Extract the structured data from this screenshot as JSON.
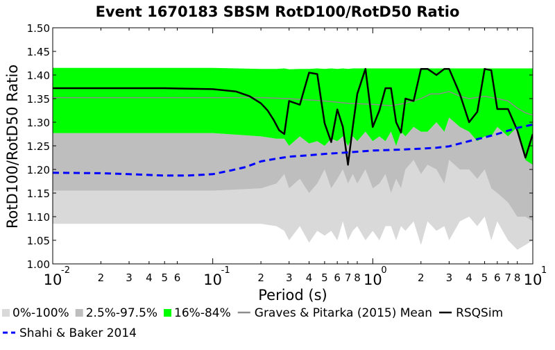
{
  "chart_data": {
    "type": "area",
    "title": "Event 1670183 SBSM RotD100/RotD50 Ratio",
    "xlabel": "Period (s)",
    "ylabel": "RotD100/RotD50 Ratio",
    "xscale": "log",
    "xlim": [
      0.01,
      10
    ],
    "ylim": [
      1.0,
      1.5
    ],
    "grid": false,
    "legend_position": "bottom",
    "y_ticks": [
      "1.00",
      "1.05",
      "1.10",
      "1.15",
      "1.20",
      "1.25",
      "1.30",
      "1.35",
      "1.40",
      "1.45",
      "1.50"
    ],
    "x_major_ticks": [
      {
        "value": 0.01,
        "base": "10",
        "exp": "-2"
      },
      {
        "value": 0.1,
        "base": "10",
        "exp": "-1"
      },
      {
        "value": 1,
        "base": "10",
        "exp": "0"
      },
      {
        "value": 10,
        "base": "10",
        "exp": "1"
      }
    ],
    "x_minor_ticks": [
      {
        "value": 0.02,
        "label": "2"
      },
      {
        "value": 0.03,
        "label": "3"
      },
      {
        "value": 0.04,
        "label": "4"
      },
      {
        "value": 0.05,
        "label": "5"
      },
      {
        "value": 0.06,
        "label": "6"
      },
      {
        "value": 0.2,
        "label": "2"
      },
      {
        "value": 0.3,
        "label": "3"
      },
      {
        "value": 0.4,
        "label": "4"
      },
      {
        "value": 0.5,
        "label": "5"
      },
      {
        "value": 0.6,
        "label": "6"
      },
      {
        "value": 0.7,
        "label": "7"
      },
      {
        "value": 0.8,
        "label": "8"
      },
      {
        "value": 2,
        "label": "2"
      },
      {
        "value": 3,
        "label": "3"
      },
      {
        "value": 4,
        "label": "4"
      },
      {
        "value": 5,
        "label": "5"
      },
      {
        "value": 6,
        "label": "6"
      },
      {
        "value": 7,
        "label": "7"
      },
      {
        "value": 8,
        "label": "8"
      }
    ],
    "legend": [
      {
        "name": "0%-100%",
        "kind": "patch",
        "color": "#d9d9d9"
      },
      {
        "name": "2.5%-97.5%",
        "kind": "patch",
        "color": "#bebebe"
      },
      {
        "name": "16%-84%",
        "kind": "patch",
        "color": "#00ff00"
      },
      {
        "name": "Graves & Pitarka (2015) Mean",
        "kind": "line",
        "color": "#8c8c8c",
        "dash": "solid"
      },
      {
        "name": "RSQSim",
        "kind": "line",
        "color": "#000000",
        "dash": "solid"
      },
      {
        "name": "Shahi & Baker 2014",
        "kind": "line",
        "color": "#0000ff",
        "dash": "dashed"
      }
    ],
    "bands": [
      {
        "name": "0%-100%",
        "color": "#d9d9d9",
        "x": [
          0.01,
          0.1,
          0.2,
          0.25,
          0.28,
          0.3,
          0.35,
          0.4,
          0.45,
          0.5,
          0.55,
          0.6,
          0.65,
          0.7,
          0.75,
          0.8,
          0.9,
          1.0,
          1.1,
          1.2,
          1.3,
          1.4,
          1.5,
          1.6,
          1.8,
          2.0,
          2.2,
          2.5,
          2.8,
          3.0,
          3.5,
          4.0,
          4.5,
          5.0,
          5.5,
          6.0,
          7.0,
          8.0,
          9.0,
          10.0
        ],
        "upper": [
          1.155,
          1.155,
          1.16,
          1.17,
          1.19,
          1.16,
          1.18,
          1.15,
          1.17,
          1.2,
          1.16,
          1.18,
          1.2,
          1.17,
          1.19,
          1.17,
          1.2,
          1.16,
          1.17,
          1.19,
          1.15,
          1.18,
          1.16,
          1.2,
          1.22,
          1.19,
          1.21,
          1.2,
          1.17,
          1.22,
          1.2,
          1.2,
          1.18,
          1.2,
          1.16,
          1.15,
          1.13,
          1.1,
          1.1,
          1.09
        ],
        "lower": [
          1.085,
          1.085,
          1.085,
          1.08,
          1.07,
          1.05,
          1.08,
          1.045,
          1.07,
          1.06,
          1.07,
          1.05,
          1.09,
          1.05,
          1.07,
          1.08,
          1.05,
          1.07,
          1.05,
          1.08,
          1.08,
          1.05,
          1.08,
          1.07,
          1.09,
          1.04,
          1.09,
          1.07,
          1.08,
          1.05,
          1.09,
          1.1,
          1.08,
          1.1,
          1.05,
          1.09,
          1.05,
          1.03,
          1.04,
          1.05
        ]
      },
      {
        "name": "2.5%-97.5%",
        "color": "#bebebe",
        "x": [
          0.01,
          0.1,
          0.2,
          0.25,
          0.28,
          0.3,
          0.35,
          0.4,
          0.45,
          0.5,
          0.55,
          0.6,
          0.65,
          0.7,
          0.75,
          0.8,
          0.9,
          1.0,
          1.1,
          1.2,
          1.3,
          1.4,
          1.5,
          1.6,
          1.8,
          2.0,
          2.2,
          2.5,
          2.8,
          3.0,
          3.5,
          4.0,
          4.5,
          5.0,
          5.5,
          6.0,
          7.0,
          8.0,
          9.0,
          10.0
        ],
        "upper": [
          1.277,
          1.277,
          1.27,
          1.265,
          1.265,
          1.25,
          1.27,
          1.255,
          1.26,
          1.25,
          1.265,
          1.26,
          1.27,
          1.25,
          1.27,
          1.26,
          1.28,
          1.26,
          1.27,
          1.26,
          1.28,
          1.25,
          1.28,
          1.27,
          1.29,
          1.28,
          1.28,
          1.3,
          1.28,
          1.31,
          1.29,
          1.28,
          1.26,
          1.27,
          1.27,
          1.29,
          1.27,
          1.29,
          1.28,
          1.27
        ],
        "lower": [
          1.155,
          1.155,
          1.16,
          1.17,
          1.19,
          1.16,
          1.18,
          1.15,
          1.17,
          1.2,
          1.16,
          1.18,
          1.2,
          1.17,
          1.19,
          1.17,
          1.2,
          1.16,
          1.17,
          1.19,
          1.15,
          1.18,
          1.16,
          1.2,
          1.22,
          1.19,
          1.21,
          1.2,
          1.17,
          1.22,
          1.2,
          1.2,
          1.18,
          1.2,
          1.16,
          1.15,
          1.13,
          1.1,
          1.1,
          1.09
        ]
      },
      {
        "name": "16%-84%",
        "color": "#00ff00",
        "x": [
          0.01,
          0.1,
          0.2,
          0.25,
          0.28,
          0.3,
          0.35,
          0.4,
          0.45,
          0.5,
          0.55,
          0.6,
          0.65,
          0.7,
          0.75,
          0.8,
          0.9,
          1.0,
          1.1,
          1.2,
          1.3,
          1.4,
          1.5,
          1.6,
          1.8,
          2.0,
          2.2,
          2.5,
          2.8,
          3.0,
          3.5,
          4.0,
          4.5,
          5.0,
          5.5,
          6.0,
          7.0,
          8.0,
          9.0,
          10.0
        ],
        "upper": [
          1.415,
          1.415,
          1.413,
          1.413,
          1.414,
          1.412,
          1.413,
          1.413,
          1.414,
          1.413,
          1.414,
          1.413,
          1.414,
          1.413,
          1.414,
          1.414,
          1.414,
          1.414,
          1.414,
          1.414,
          1.414,
          1.414,
          1.414,
          1.414,
          1.414,
          1.414,
          1.414,
          1.414,
          1.414,
          1.414,
          1.414,
          1.414,
          1.414,
          1.414,
          1.414,
          1.414,
          1.414,
          1.414,
          1.414,
          1.414
        ],
        "lower": [
          1.277,
          1.277,
          1.27,
          1.265,
          1.265,
          1.25,
          1.27,
          1.255,
          1.26,
          1.25,
          1.265,
          1.26,
          1.27,
          1.25,
          1.27,
          1.26,
          1.28,
          1.26,
          1.27,
          1.26,
          1.28,
          1.25,
          1.28,
          1.27,
          1.29,
          1.28,
          1.28,
          1.3,
          1.28,
          1.31,
          1.29,
          1.28,
          1.26,
          1.27,
          1.27,
          1.29,
          1.27,
          1.29,
          1.22,
          1.21
        ]
      }
    ],
    "series": [
      {
        "name": "Graves & Pitarka (2015) Mean",
        "color": "#8c8c8c",
        "dash": "solid",
        "width": 1.5,
        "x": [
          0.01,
          0.1,
          0.2,
          0.3,
          0.5,
          0.7,
          1.0,
          1.3,
          1.6,
          2.0,
          2.3,
          2.6,
          3.0,
          3.5,
          4.0,
          5.0,
          6.0,
          7.0,
          8.0,
          9.0,
          10.0
        ],
        "y": [
          1.352,
          1.352,
          1.352,
          1.35,
          1.345,
          1.34,
          1.338,
          1.335,
          1.34,
          1.35,
          1.36,
          1.36,
          1.365,
          1.355,
          1.35,
          1.355,
          1.35,
          1.345,
          1.33,
          1.32,
          1.315
        ]
      },
      {
        "name": "RSQSim",
        "color": "#000000",
        "dash": "solid",
        "width": 2.5,
        "x": [
          0.01,
          0.05,
          0.1,
          0.14,
          0.17,
          0.2,
          0.22,
          0.24,
          0.26,
          0.28,
          0.3,
          0.35,
          0.4,
          0.45,
          0.5,
          0.55,
          0.6,
          0.65,
          0.7,
          0.75,
          0.8,
          0.9,
          1.0,
          1.1,
          1.2,
          1.3,
          1.4,
          1.5,
          1.6,
          1.8,
          2.0,
          2.2,
          2.5,
          2.8,
          3.0,
          3.5,
          4.0,
          4.5,
          5.0,
          5.5,
          6.0,
          7.0,
          8.0,
          9.0,
          10.0
        ],
        "y": [
          1.372,
          1.372,
          1.37,
          1.365,
          1.355,
          1.34,
          1.325,
          1.305,
          1.283,
          1.275,
          1.345,
          1.337,
          1.405,
          1.402,
          1.298,
          1.258,
          1.327,
          1.29,
          1.21,
          1.29,
          1.36,
          1.413,
          1.29,
          1.325,
          1.372,
          1.372,
          1.3,
          1.278,
          1.35,
          1.345,
          1.413,
          1.413,
          1.4,
          1.413,
          1.413,
          1.36,
          1.3,
          1.322,
          1.413,
          1.41,
          1.328,
          1.328,
          1.283,
          1.225,
          1.275
        ]
      },
      {
        "name": "Shahi & Baker 2014",
        "color": "#0000ff",
        "dash": "dashed",
        "width": 3,
        "x": [
          0.01,
          0.02,
          0.03,
          0.05,
          0.07,
          0.1,
          0.13,
          0.16,
          0.2,
          0.25,
          0.3,
          0.4,
          0.5,
          0.7,
          1.0,
          1.5,
          2.0,
          2.5,
          3.0,
          4.0,
          5.0,
          6.0,
          7.0,
          8.0,
          10.0
        ],
        "y": [
          1.193,
          1.192,
          1.19,
          1.187,
          1.187,
          1.19,
          1.198,
          1.205,
          1.217,
          1.223,
          1.227,
          1.23,
          1.233,
          1.236,
          1.24,
          1.242,
          1.244,
          1.246,
          1.249,
          1.26,
          1.268,
          1.275,
          1.282,
          1.288,
          1.295
        ]
      }
    ]
  }
}
